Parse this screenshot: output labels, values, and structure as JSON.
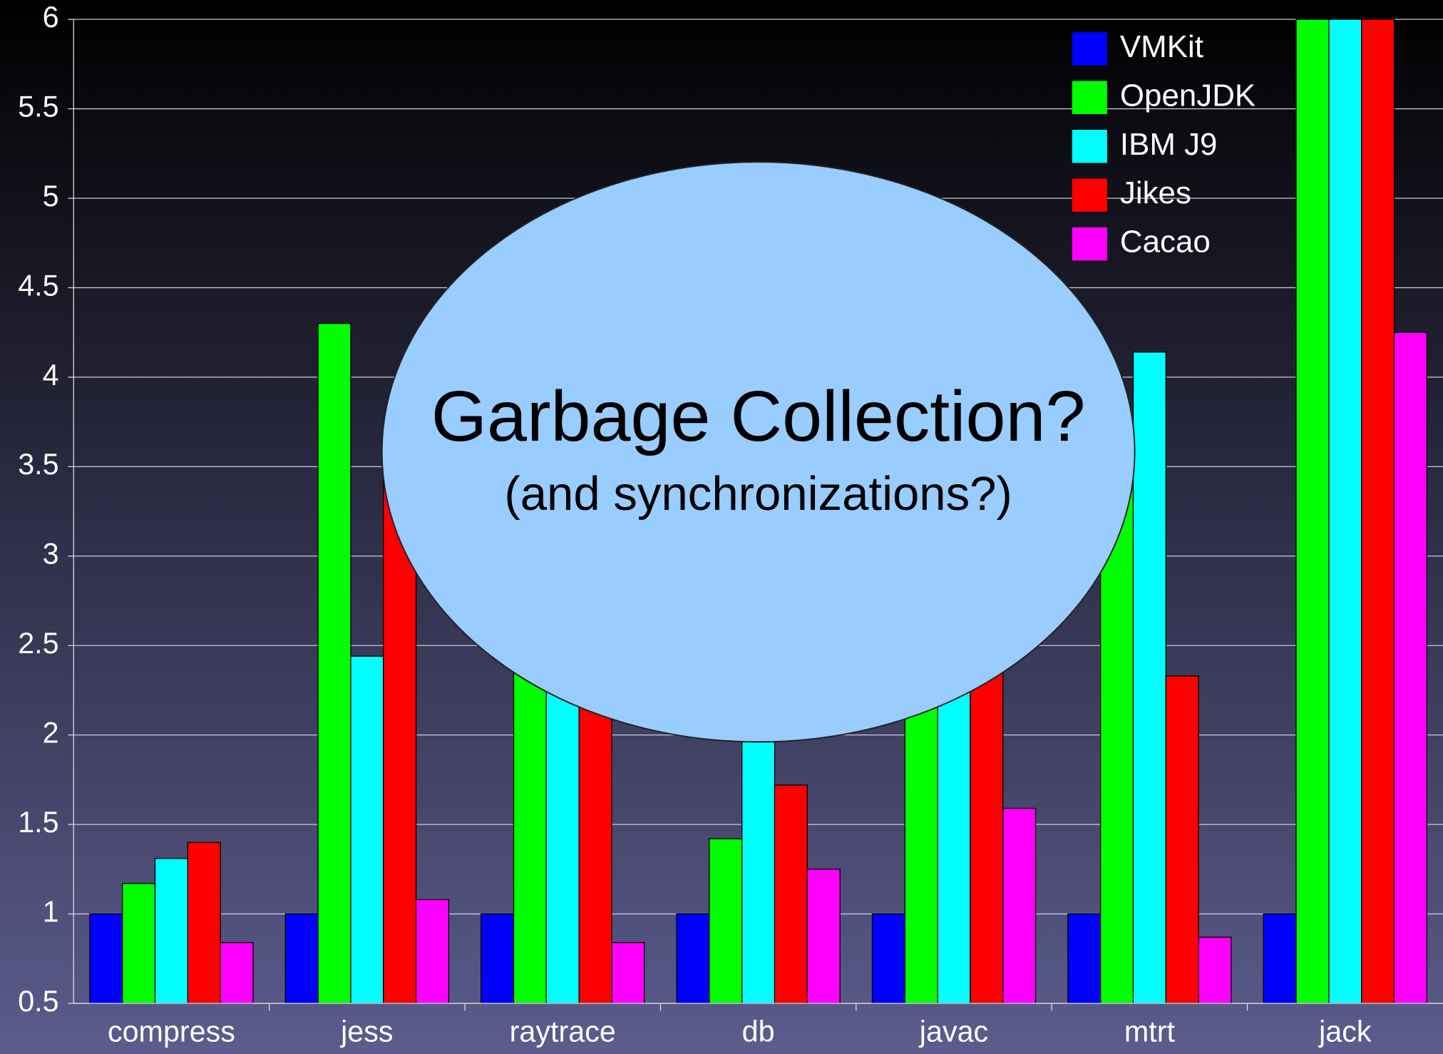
{
  "chart_data": {
    "type": "bar",
    "categories": [
      "compress",
      "jess",
      "raytrace",
      "db",
      "javac",
      "mtrt",
      "jack"
    ],
    "series": [
      {
        "name": "VMKit",
        "color": "#0000ff",
        "values": [
          1,
          1,
          1,
          1,
          1,
          1,
          1
        ]
      },
      {
        "name": "OpenJDK",
        "color": "#00ff00",
        "values": [
          1.17,
          4.3,
          2.5,
          1.42,
          2.3,
          3.7,
          6
        ]
      },
      {
        "name": "IBM J9",
        "color": "#00ffff",
        "values": [
          1.31,
          2.44,
          2.3,
          2.1,
          2.4,
          4.14,
          6
        ]
      },
      {
        "name": "Jikes",
        "color": "#ff0000",
        "values": [
          1.4,
          3.6,
          2.2,
          1.72,
          2.6,
          2.33,
          6
        ]
      },
      {
        "name": "Cacao",
        "color": "#ff00ff",
        "values": [
          0.84,
          1.08,
          0.84,
          1.25,
          1.59,
          0.87,
          4.25
        ]
      }
    ],
    "ylim": [
      0.5,
      6
    ],
    "yticks": [
      0.5,
      1,
      1.5,
      2,
      2.5,
      3,
      3.5,
      4,
      4.5,
      5,
      5.5,
      6
    ],
    "grid": true,
    "legend": "top-right",
    "annotations": [
      "Garbage Collection?",
      "(and synchronizations?)"
    ]
  }
}
